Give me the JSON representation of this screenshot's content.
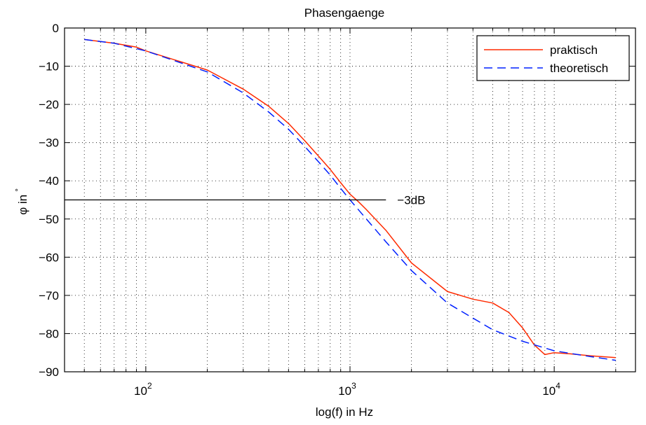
{
  "chart_data": {
    "type": "line",
    "title": "Phasengaenge",
    "xlabel": "log(f) in Hz",
    "ylabel": "φ in °",
    "ylabel_main": "φ in",
    "ylabel_unit": "°",
    "xscale": "log",
    "xlim": [
      40,
      25000
    ],
    "ylim": [
      -90,
      0
    ],
    "grid": true,
    "legend_position": "top-right",
    "y_ticks": [
      0,
      -10,
      -20,
      -30,
      -40,
      -50,
      -60,
      -70,
      -80,
      -90
    ],
    "y_tick_labels": [
      "0",
      "−10",
      "−20",
      "−30",
      "−40",
      "−50",
      "−60",
      "−70",
      "−80",
      "−90"
    ],
    "x_ticks": [
      {
        "value": 100,
        "base": "10",
        "exp": "2"
      },
      {
        "value": 1000,
        "base": "10",
        "exp": "3"
      },
      {
        "value": 10000,
        "base": "10",
        "exp": "4"
      }
    ],
    "series": [
      {
        "name": "praktisch",
        "color": "#ff2a00",
        "style": "solid",
        "x": [
          50,
          70,
          90,
          100,
          200,
          300,
          400,
          500,
          600,
          700,
          800,
          900,
          1000,
          1100,
          1200,
          1500,
          2000,
          3000,
          4000,
          5000,
          6000,
          7000,
          8000,
          9000,
          10000,
          12000,
          15000,
          20000
        ],
        "y": [
          -3,
          -4,
          -5,
          -6,
          -11,
          -16,
          -20.5,
          -25,
          -29.5,
          -33.5,
          -37,
          -40.5,
          -43.5,
          -45.5,
          -47.5,
          -53,
          -61.5,
          -69,
          -71,
          -72,
          -74.5,
          -78.5,
          -83,
          -85.5,
          -85,
          -85.3,
          -85.8,
          -86.3
        ]
      },
      {
        "name": "theoretisch",
        "color": "#0020ff",
        "style": "dashed",
        "x": [
          50,
          70,
          100,
          200,
          300,
          400,
          500,
          600,
          700,
          800,
          900,
          1000,
          1500,
          2000,
          3000,
          5000,
          7000,
          10000,
          15000,
          20000
        ],
        "y": [
          -3,
          -4,
          -6,
          -11.5,
          -17,
          -22,
          -26.5,
          -31,
          -35,
          -38.5,
          -42,
          -45,
          -56,
          -63.5,
          -72,
          -79,
          -82,
          -84.5,
          -86,
          -87
        ]
      }
    ],
    "annotations": [
      {
        "text": "−3dB",
        "y": -45,
        "x_from": 40,
        "x_to": 1500
      }
    ]
  }
}
